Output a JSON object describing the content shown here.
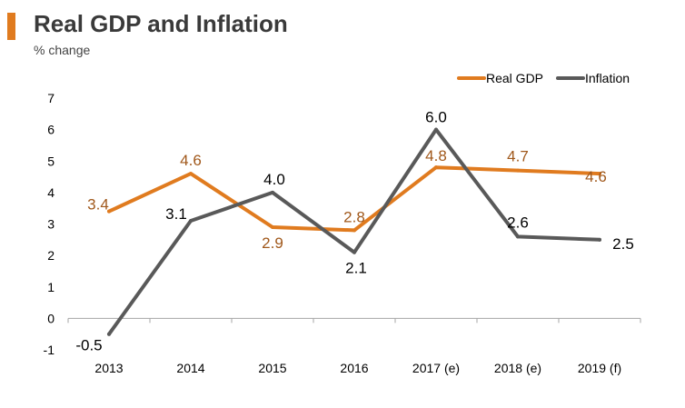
{
  "header": {
    "title": "Real GDP and Inflation",
    "subtitle": "% change"
  },
  "colors": {
    "accent": "#e07b1f",
    "real_gdp": "#e07b1f",
    "real_gdp_label": "#a0581b",
    "inflation": "#595959",
    "axis": "#a6a6a6",
    "text": "#000000"
  },
  "chart_data": {
    "type": "line",
    "title": "Real GDP and Inflation",
    "subtitle": "% change",
    "xlabel": "",
    "ylabel": "",
    "categories": [
      "2013",
      "2014",
      "2015",
      "2016",
      "2017 (e)",
      "2018 (e)",
      "2019 (f)"
    ],
    "ylim": [
      -1,
      7
    ],
    "yticks": [
      -1,
      0,
      1,
      2,
      3,
      4,
      5,
      6,
      7
    ],
    "grid": false,
    "legend_position": "top-right",
    "series": [
      {
        "name": "Real GDP",
        "color": "#e07b1f",
        "values": [
          3.4,
          4.6,
          2.9,
          2.8,
          4.8,
          4.7,
          4.6
        ],
        "labels": [
          "3.4",
          "4.6",
          "2.9",
          "2.8",
          "4.8",
          "4.7",
          "4.6"
        ]
      },
      {
        "name": "Inflation",
        "color": "#595959",
        "values": [
          -0.5,
          3.1,
          4.0,
          2.1,
          6.0,
          2.6,
          2.5
        ],
        "labels": [
          "-0.5",
          "3.1",
          "4.0",
          "2.1",
          "6.0",
          "2.6",
          "2.5"
        ]
      }
    ]
  }
}
